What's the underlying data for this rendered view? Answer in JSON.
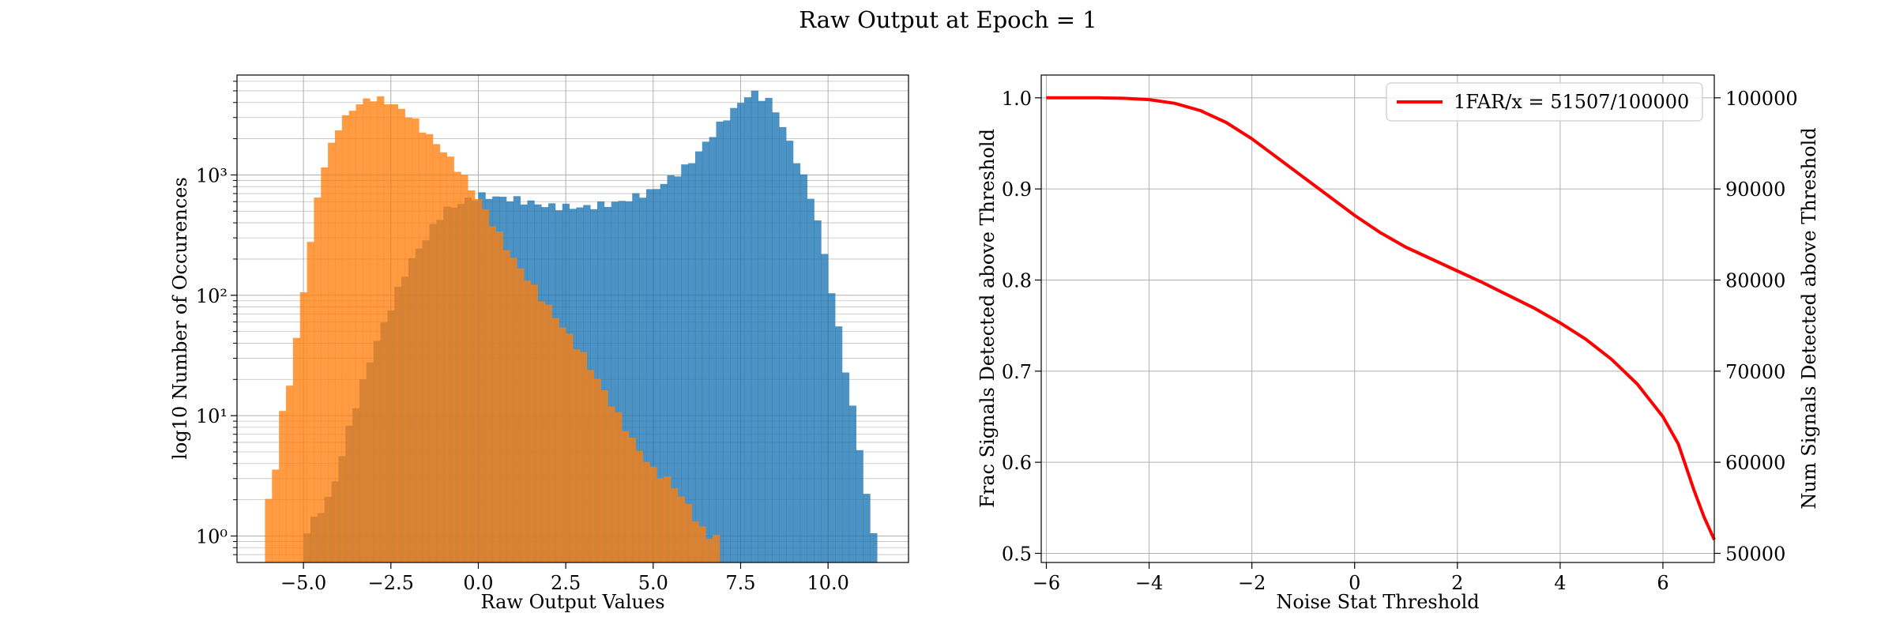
{
  "figure": {
    "title": "Raw Output at Epoch = 1"
  },
  "colors": {
    "blue": "#1f77b4",
    "orange": "#ff7f0e",
    "overlap": "#e1802b",
    "line": "#ff0000",
    "grid": "#b0b0b0"
  },
  "chart_data": [
    {
      "type": "bar",
      "subtype": "histogram",
      "xlabel": "Raw Output Values",
      "ylabel": "log10 Number of Occurences",
      "xlim": [
        -6.9,
        12.3
      ],
      "ylim_log10": [
        -0.22,
        3.83
      ],
      "yscale": "log",
      "grid": true,
      "x_ticks": [
        -5.0,
        -2.5,
        0.0,
        2.5,
        5.0,
        7.5,
        10.0
      ],
      "x_tick_labels": [
        "−5.0",
        "−2.5",
        "0.0",
        "2.5",
        "5.0",
        "7.5",
        "10.0"
      ],
      "y_ticks_log10": [
        0,
        1,
        2,
        3
      ],
      "y_tick_labels": [
        "10⁰",
        "10¹",
        "10²",
        "10³"
      ],
      "bin_width": 0.2,
      "series": [
        {
          "color": "#1f77b4",
          "anchors": [
            [
              -5.0,
              0.0
            ],
            [
              -4.2,
              0.35
            ],
            [
              -3.6,
              1.0
            ],
            [
              -3.0,
              1.55
            ],
            [
              -2.0,
              2.25
            ],
            [
              -1.0,
              2.7
            ],
            [
              0.0,
              2.83
            ],
            [
              1.0,
              2.8
            ],
            [
              2.0,
              2.74
            ],
            [
              3.0,
              2.73
            ],
            [
              4.0,
              2.77
            ],
            [
              5.0,
              2.87
            ],
            [
              6.0,
              3.08
            ],
            [
              7.0,
              3.45
            ],
            [
              7.8,
              3.69
            ],
            [
              8.4,
              3.6
            ],
            [
              9.0,
              3.2
            ],
            [
              9.6,
              2.75
            ],
            [
              10.0,
              2.2
            ],
            [
              10.4,
              1.55
            ],
            [
              10.8,
              0.9
            ],
            [
              11.3,
              0.0
            ]
          ],
          "range": [
            -5.0,
            11.3
          ]
        },
        {
          "color": "#ff7f0e",
          "anchors": [
            [
              -6.1,
              0.45
            ],
            [
              -5.9,
              0.2
            ],
            [
              -5.7,
              0.9
            ],
            [
              -5.3,
              1.4
            ],
            [
              -5.0,
              2.05
            ],
            [
              -4.5,
              3.0
            ],
            [
              -4.0,
              3.4
            ],
            [
              -3.5,
              3.58
            ],
            [
              -3.0,
              3.64
            ],
            [
              -2.5,
              3.6
            ],
            [
              -2.0,
              3.5
            ],
            [
              -1.5,
              3.35
            ],
            [
              -1.0,
              3.2
            ],
            [
              -0.5,
              3.02
            ],
            [
              0.0,
              2.8
            ],
            [
              0.5,
              2.55
            ],
            [
              1.0,
              2.3
            ],
            [
              1.5,
              2.1
            ],
            [
              2.0,
              1.9
            ],
            [
              2.5,
              1.7
            ],
            [
              3.0,
              1.5
            ],
            [
              3.5,
              1.25
            ],
            [
              4.0,
              1.0
            ],
            [
              4.5,
              0.75
            ],
            [
              5.0,
              0.55
            ],
            [
              5.5,
              0.45
            ],
            [
              6.0,
              0.25
            ],
            [
              6.5,
              0.0
            ],
            [
              6.9,
              0.0
            ]
          ],
          "range": [
            -6.1,
            6.9
          ]
        }
      ]
    },
    {
      "type": "line",
      "xlabel": "Noise Stat Threshold",
      "ylabel": "Frac Signals Detected above Threshold",
      "ylabel_right": "Num Signals Detected above Threshold",
      "xlim": [
        -6.1,
        7.0
      ],
      "ylim": [
        0.49,
        1.025
      ],
      "ylim_right": [
        49000,
        102500
      ],
      "grid": true,
      "x_ticks": [
        -6,
        -4,
        -2,
        0,
        2,
        4,
        6
      ],
      "x_tick_labels": [
        "−6",
        "−4",
        "−2",
        "0",
        "2",
        "4",
        "6"
      ],
      "y_ticks": [
        0.5,
        0.6,
        0.7,
        0.8,
        0.9,
        1.0
      ],
      "y_tick_labels": [
        "0.5",
        "0.6",
        "0.7",
        "0.8",
        "0.9",
        "1.0"
      ],
      "y_ticks_right": [
        50000,
        60000,
        70000,
        80000,
        90000,
        100000
      ],
      "y_tick_labels_right": [
        "50000",
        "60000",
        "70000",
        "80000",
        "90000",
        "100000"
      ],
      "legend": {
        "label": "1FAR/x = 51507/100000",
        "position": "top-right"
      },
      "series": [
        {
          "name": "1FAR/x = 51507/100000",
          "color": "#ff0000",
          "x": [
            -6.0,
            -5.0,
            -4.5,
            -4.0,
            -3.5,
            -3.0,
            -2.5,
            -2.0,
            -1.5,
            -1.0,
            -0.5,
            0.0,
            0.5,
            1.0,
            1.5,
            2.0,
            2.5,
            3.0,
            3.5,
            4.0,
            4.5,
            5.0,
            5.5,
            6.0,
            6.3,
            6.6,
            6.8,
            7.0
          ],
          "y": [
            1.0,
            1.0,
            0.9995,
            0.998,
            0.994,
            0.986,
            0.973,
            0.955,
            0.934,
            0.913,
            0.892,
            0.871,
            0.852,
            0.836,
            0.823,
            0.81,
            0.797,
            0.783,
            0.769,
            0.753,
            0.735,
            0.713,
            0.686,
            0.65,
            0.62,
            0.57,
            0.54,
            0.515
          ]
        }
      ]
    }
  ]
}
